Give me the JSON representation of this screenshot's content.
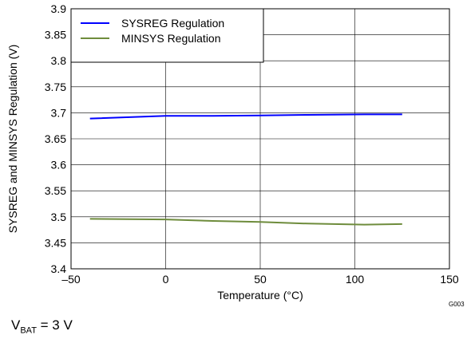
{
  "chart_data": {
    "type": "line",
    "title": "",
    "xlabel": "Temperature (°C)",
    "ylabel": "SYSREG and MINSYS Regulation (V)",
    "xlim": [
      -50,
      150
    ],
    "ylim": [
      3.4,
      3.9
    ],
    "x_ticks": [
      "–50",
      "0",
      "50",
      "100",
      "150"
    ],
    "x_tick_values": [
      -50,
      0,
      50,
      100,
      150
    ],
    "y_ticks": [
      "3.4",
      "3.45",
      "3.5",
      "3.55",
      "3.6",
      "3.65",
      "3.7",
      "3.75",
      "3.8",
      "3.85",
      "3.9"
    ],
    "y_tick_values": [
      3.4,
      3.45,
      3.5,
      3.55,
      3.6,
      3.65,
      3.7,
      3.75,
      3.8,
      3.85,
      3.9
    ],
    "grid": true,
    "legend_position": "top-left",
    "series": [
      {
        "name": "SYSREG Regulation",
        "color": "#0000ff",
        "x": [
          -40,
          0,
          25,
          50,
          75,
          105,
          125
        ],
        "y": [
          3.689,
          3.694,
          3.694,
          3.695,
          3.696,
          3.697,
          3.697
        ]
      },
      {
        "name": "MINSYS Regulation",
        "color": "#6e8c3c",
        "x": [
          -40,
          0,
          25,
          50,
          75,
          105,
          125
        ],
        "y": [
          3.496,
          3.495,
          3.492,
          3.49,
          3.487,
          3.485,
          3.486
        ]
      }
    ],
    "figure_code": "G003"
  },
  "caption": {
    "main": "V",
    "sub": "BAT",
    "rest": " = 3 V"
  }
}
